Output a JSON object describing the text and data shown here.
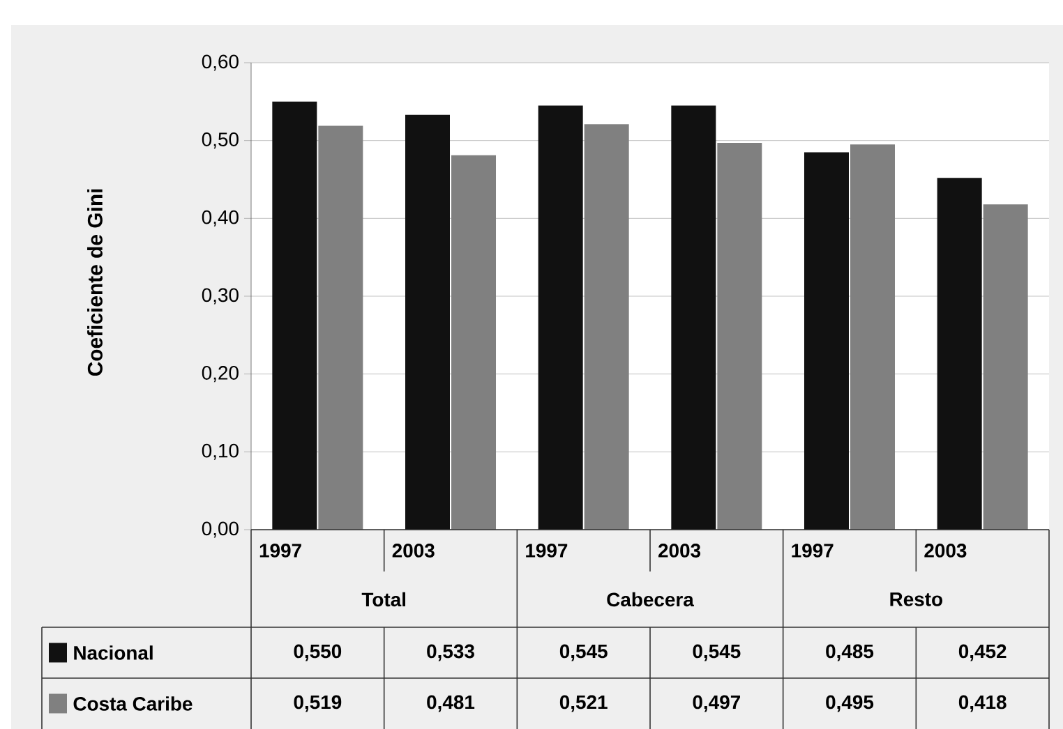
{
  "chart_data": {
    "type": "bar",
    "ylabel": "Coeficiente de Gini",
    "categories": [
      "1997",
      "2003",
      "1997",
      "2003",
      "1997",
      "2003"
    ],
    "annotations": [
      "Total",
      "Cabecera",
      "Resto"
    ],
    "series": [
      {
        "name": "Nacional",
        "color": "#111111",
        "values": [
          0.55,
          0.533,
          0.545,
          0.545,
          0.485,
          0.452
        ],
        "value_labels": [
          "0,550",
          "0,533",
          "0,545",
          "0,545",
          "0,485",
          "0,452"
        ]
      },
      {
        "name": "Costa Caribe",
        "color": "#808080",
        "values": [
          0.519,
          0.481,
          0.521,
          0.497,
          0.495,
          0.418
        ],
        "value_labels": [
          "0,519",
          "0,481",
          "0,521",
          "0,497",
          "0,495",
          "0,418"
        ]
      }
    ],
    "ylim": [
      0,
      0.6
    ],
    "yticks": [
      {
        "value": 0,
        "label": "0,00"
      },
      {
        "value": 0.1,
        "label": "0,10"
      },
      {
        "value": 0.2,
        "label": "0,20"
      },
      {
        "value": 0.3,
        "label": "0,30"
      },
      {
        "value": 0.4,
        "label": "0,40"
      },
      {
        "value": 0.5,
        "label": "0,50"
      },
      {
        "value": 0.6,
        "label": "0,60"
      }
    ],
    "grid": "y",
    "legend": "bottom left"
  }
}
